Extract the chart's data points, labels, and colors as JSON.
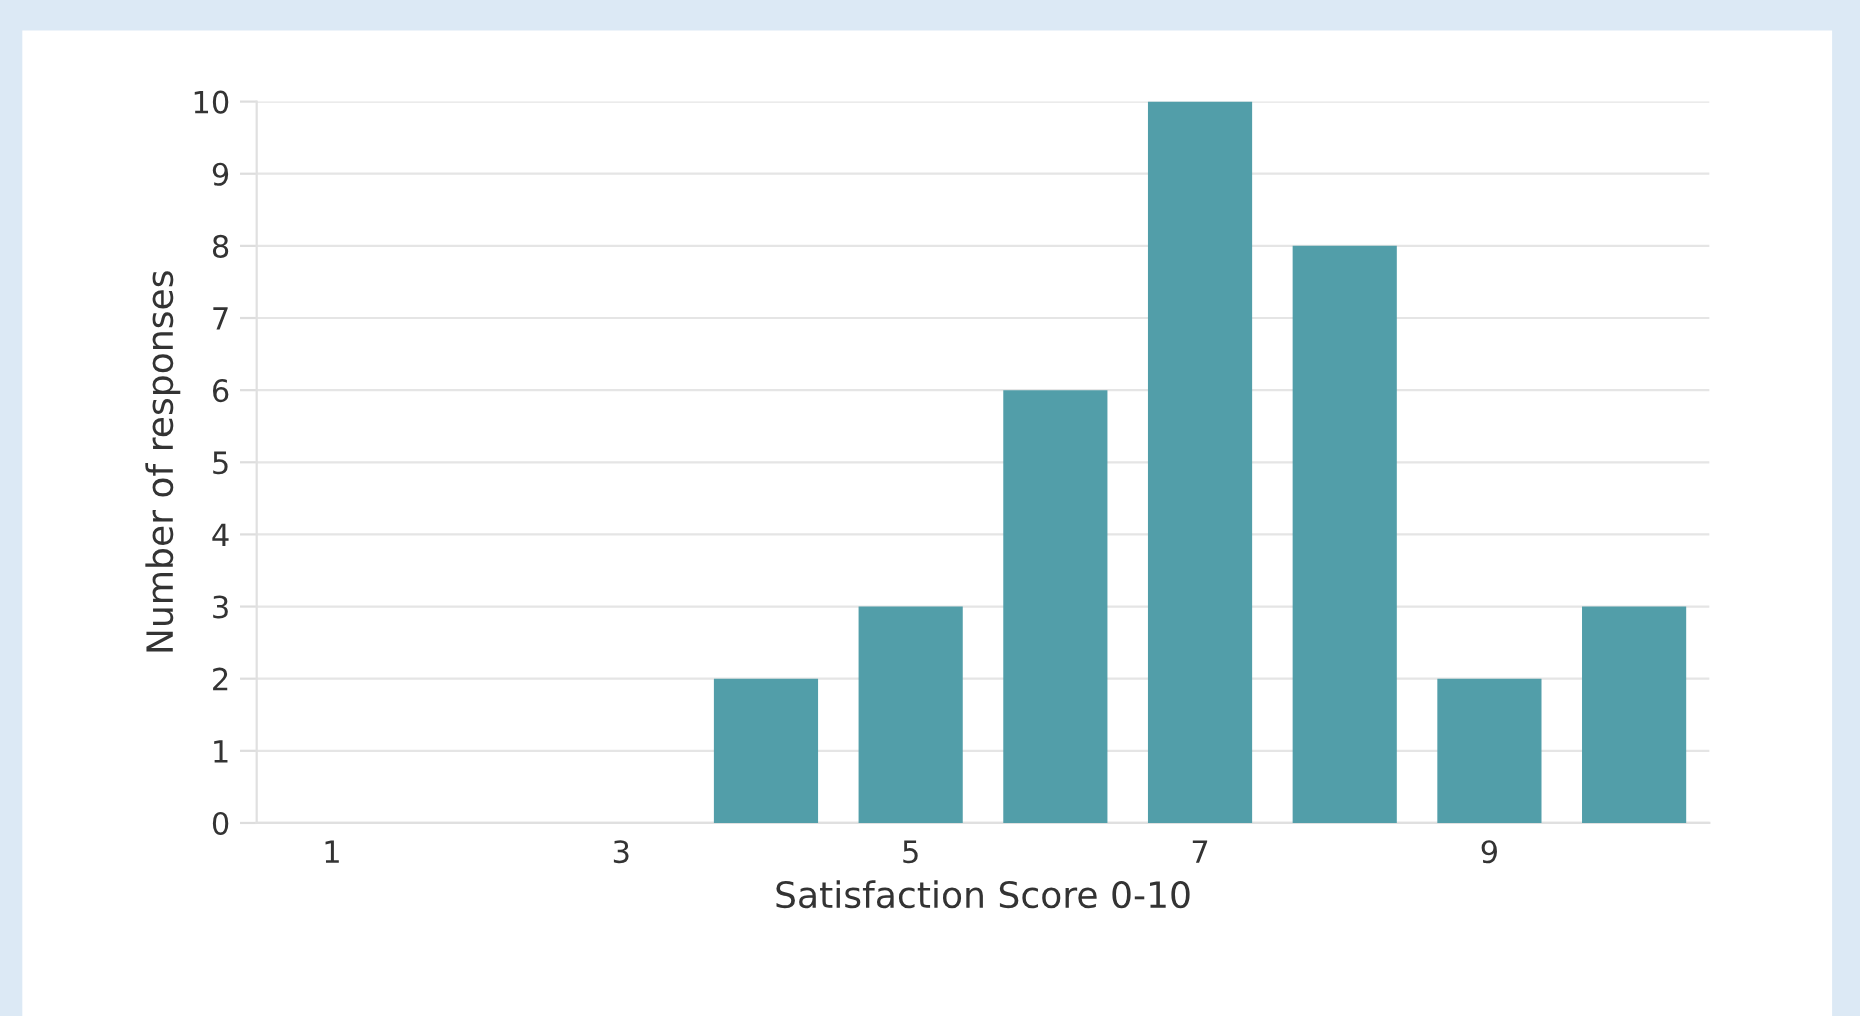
{
  "chart_data": {
    "type": "bar",
    "xlabel": "Satisfaction Score 0-10",
    "ylabel": "Number of responses",
    "categories": [
      "1",
      null,
      "3",
      null,
      "5",
      null,
      "7",
      null,
      "9",
      null
    ],
    "values": [
      0,
      0,
      0,
      2,
      3,
      6,
      10,
      8,
      2,
      3
    ],
    "color": "#529ea9",
    "ylim": [
      0,
      10
    ],
    "yticks": [
      0,
      1,
      2,
      3,
      4,
      5,
      6,
      7,
      8,
      9,
      10
    ],
    "grid": "y"
  }
}
